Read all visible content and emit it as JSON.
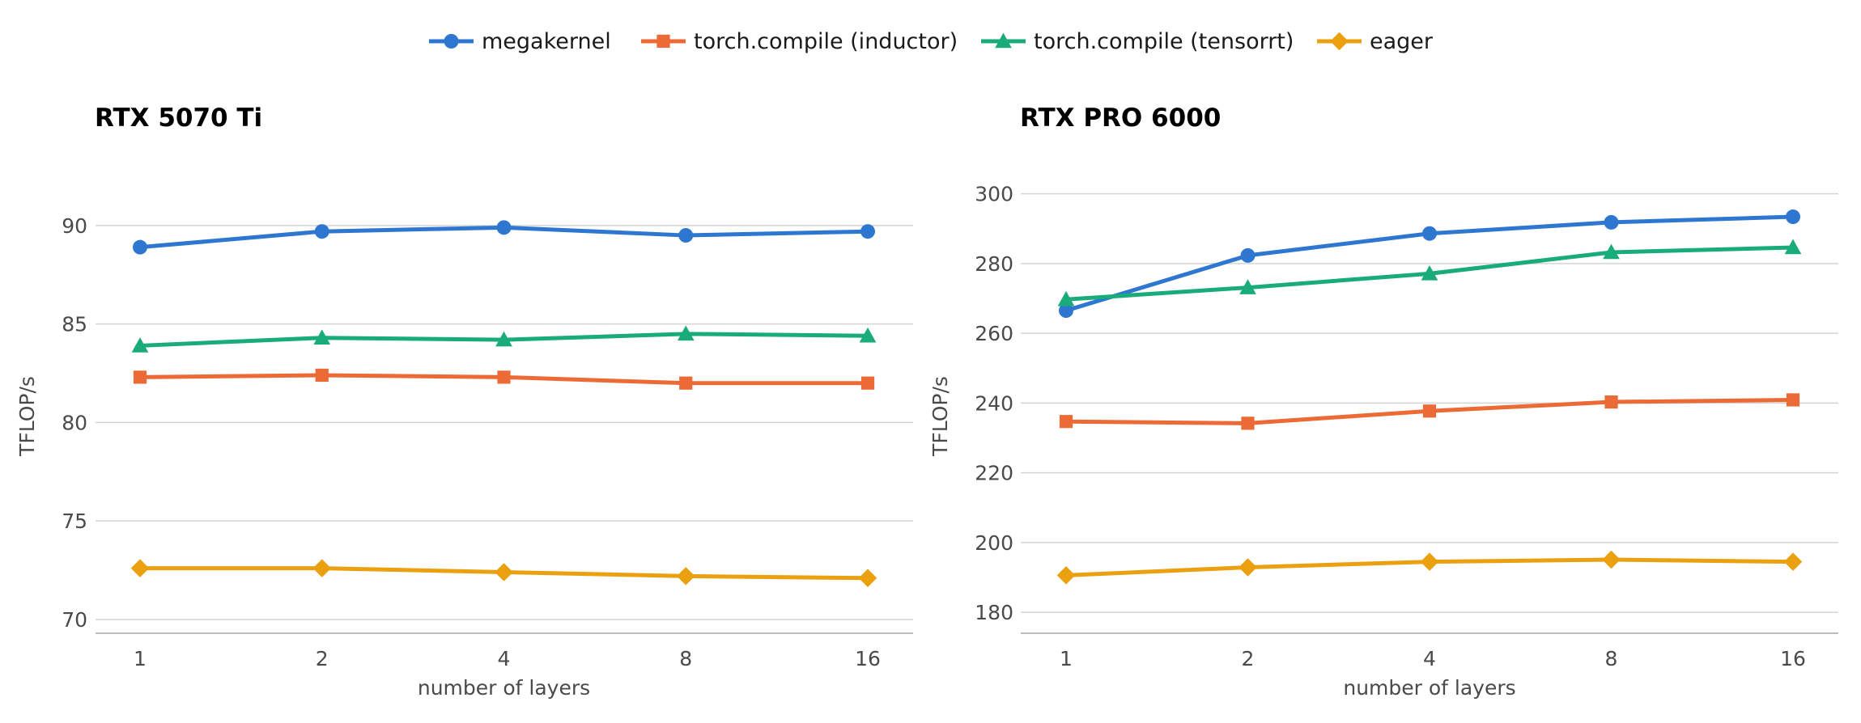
{
  "legend": [
    {
      "name": "megakernel",
      "color": "#2e77d0",
      "marker": "circle"
    },
    {
      "name": "torch.compile (inductor)",
      "color": "#ec6a35",
      "marker": "square"
    },
    {
      "name": "torch.compile (tensorrt)",
      "color": "#1aab7a",
      "marker": "triangle"
    },
    {
      "name": "eager",
      "color": "#eba010",
      "marker": "diamond"
    }
  ],
  "chart_data": [
    {
      "type": "line",
      "title": "RTX 5070 Ti",
      "xlabel": "number of layers",
      "ylabel": "TFLOP/s",
      "categories": [
        "1",
        "2",
        "4",
        "8",
        "16"
      ],
      "ylim": [
        69.3,
        92.5
      ],
      "yticks": [
        70,
        75,
        80,
        85,
        90
      ],
      "grid": true,
      "series": [
        {
          "name": "megakernel",
          "values": [
            88.9,
            89.7,
            89.9,
            89.5,
            89.7
          ]
        },
        {
          "name": "torch.compile (inductor)",
          "values": [
            82.3,
            82.4,
            82.3,
            82.0,
            82.0
          ]
        },
        {
          "name": "torch.compile (tensorrt)",
          "values": [
            83.9,
            84.3,
            84.2,
            84.5,
            84.4
          ]
        },
        {
          "name": "eager",
          "values": [
            72.6,
            72.6,
            72.4,
            72.2,
            72.1
          ]
        }
      ]
    },
    {
      "type": "line",
      "title": "RTX PRO 6000",
      "xlabel": "number of layers",
      "ylabel": "TFLOP/s",
      "categories": [
        "1",
        "2",
        "4",
        "8",
        "16"
      ],
      "ylim": [
        174,
        305
      ],
      "yticks": [
        180,
        200,
        220,
        240,
        260,
        280,
        300
      ],
      "grid": true,
      "series": [
        {
          "name": "megakernel",
          "values": [
            266.5,
            282.3,
            288.6,
            291.8,
            293.4
          ]
        },
        {
          "name": "torch.compile (inductor)",
          "values": [
            234.7,
            234.2,
            237.7,
            240.3,
            240.9
          ]
        },
        {
          "name": "torch.compile (tensorrt)",
          "values": [
            269.7,
            273.1,
            277.1,
            283.2,
            284.6
          ]
        },
        {
          "name": "eager",
          "values": [
            190.6,
            192.9,
            194.5,
            195.1,
            194.5
          ]
        }
      ]
    }
  ]
}
